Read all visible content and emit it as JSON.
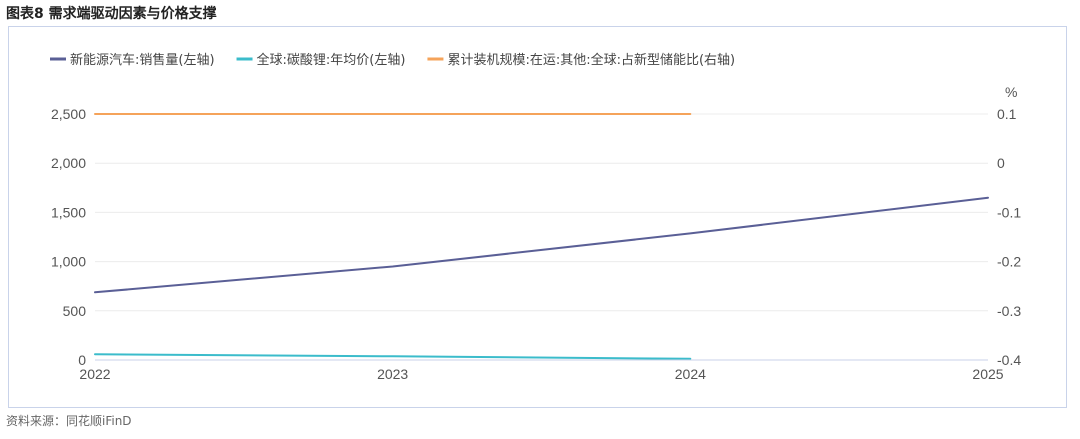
{
  "figure": {
    "title": "图表8  需求端驱动因素与价格支撑",
    "source": "资料来源：同花顺iFinD"
  },
  "chart_data": {
    "type": "line",
    "x": [
      "2022",
      "2023",
      "2024",
      "2025"
    ],
    "y_left": {
      "ticks": [
        "0",
        "500",
        "1,000",
        "1,500",
        "2,000",
        "2,500"
      ],
      "ylim": [
        0,
        2500
      ]
    },
    "y_right": {
      "unit": "%",
      "ticks": [
        "-0.4",
        "-0.3",
        "-0.2",
        "-0.1",
        "0",
        "0.1"
      ],
      "ylim": [
        -0.4,
        0.1
      ]
    },
    "grid": true,
    "legend_position": "top-left",
    "series": [
      {
        "name": "新能源汽车:销售量(左轴)",
        "axis": "left",
        "color": "#5a5f96",
        "values": [
          688,
          950,
          1287,
          1649
        ]
      },
      {
        "name": "全球:碳酸锂:年均价(左轴)",
        "axis": "left",
        "color": "#3bbccb",
        "values": [
          58,
          38,
          12,
          null
        ]
      },
      {
        "name": "累计装机规模:在运:其他:全球:占新型储能比(右轴)",
        "axis": "right",
        "color": "#f5a35a",
        "values": [
          0.1,
          0.1,
          0.1,
          null
        ]
      }
    ]
  }
}
